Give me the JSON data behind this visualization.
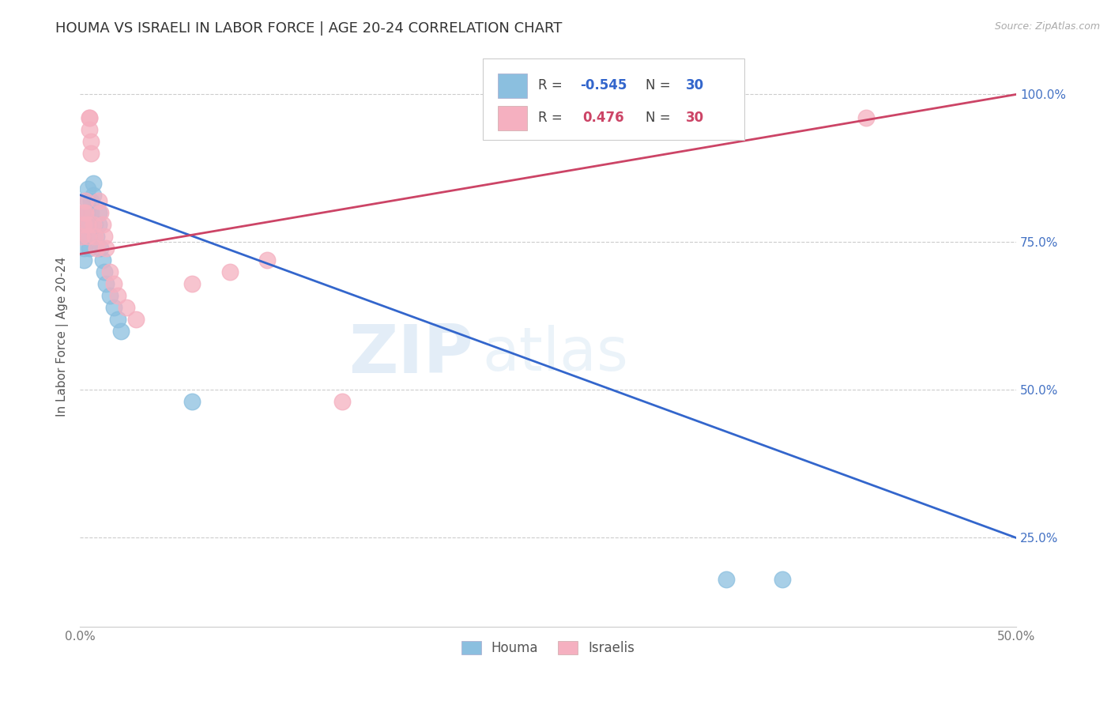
{
  "title": "HOUMA VS ISRAELI IN LABOR FORCE | AGE 20-24 CORRELATION CHART",
  "source": "Source: ZipAtlas.com",
  "ylabel": "In Labor Force | Age 20-24",
  "xlim": [
    0.0,
    0.5
  ],
  "ylim": [
    0.1,
    1.08
  ],
  "xtick_labels": [
    "0.0%",
    "",
    "",
    "",
    "",
    "50.0%"
  ],
  "xtick_vals": [
    0.0,
    0.1,
    0.2,
    0.3,
    0.4,
    0.5
  ],
  "ytick_right_labels": [
    "100.0%",
    "75.0%",
    "50.0%",
    "25.0%"
  ],
  "ytick_right_vals": [
    1.0,
    0.75,
    0.5,
    0.25
  ],
  "houma_R": -0.545,
  "houma_N": 30,
  "israeli_R": 0.476,
  "israeli_N": 30,
  "houma_color": "#8bbfdf",
  "israeli_color": "#f5b0c0",
  "houma_line_color": "#3366cc",
  "israeli_line_color": "#cc4466",
  "watermark_zip": "ZIP",
  "watermark_atlas": "atlas",
  "grid_color": "#cccccc",
  "title_color": "#333333",
  "axis_label_color": "#555555",
  "right_tick_color": "#4472c4",
  "bottom_tick_color": "#777777",
  "houma_x": [
    0.002,
    0.002,
    0.002,
    0.003,
    0.003,
    0.004,
    0.004,
    0.004,
    0.005,
    0.005,
    0.005,
    0.006,
    0.006,
    0.007,
    0.007,
    0.008,
    0.009,
    0.01,
    0.01,
    0.011,
    0.012,
    0.013,
    0.014,
    0.016,
    0.018,
    0.02,
    0.022,
    0.06,
    0.345,
    0.375
  ],
  "houma_y": [
    0.76,
    0.74,
    0.72,
    0.8,
    0.78,
    0.84,
    0.82,
    0.8,
    0.78,
    0.76,
    0.74,
    0.82,
    0.8,
    0.85,
    0.83,
    0.78,
    0.76,
    0.8,
    0.78,
    0.74,
    0.72,
    0.7,
    0.68,
    0.66,
    0.64,
    0.62,
    0.6,
    0.48,
    0.18,
    0.18
  ],
  "israeli_x": [
    0.001,
    0.002,
    0.002,
    0.003,
    0.003,
    0.004,
    0.004,
    0.005,
    0.005,
    0.005,
    0.006,
    0.006,
    0.007,
    0.008,
    0.009,
    0.01,
    0.011,
    0.012,
    0.013,
    0.014,
    0.016,
    0.018,
    0.02,
    0.025,
    0.03,
    0.06,
    0.08,
    0.1,
    0.14,
    0.42
  ],
  "israeli_y": [
    0.76,
    0.8,
    0.78,
    0.82,
    0.8,
    0.78,
    0.76,
    0.96,
    0.96,
    0.94,
    0.92,
    0.9,
    0.78,
    0.76,
    0.74,
    0.82,
    0.8,
    0.78,
    0.76,
    0.74,
    0.7,
    0.68,
    0.66,
    0.64,
    0.62,
    0.68,
    0.7,
    0.72,
    0.48,
    0.96
  ],
  "houma_trend_x": [
    0.0,
    0.5
  ],
  "houma_trend_y": [
    0.83,
    0.25
  ],
  "israeli_trend_x": [
    0.0,
    0.5
  ],
  "israeli_trend_y": [
    0.73,
    1.0
  ]
}
